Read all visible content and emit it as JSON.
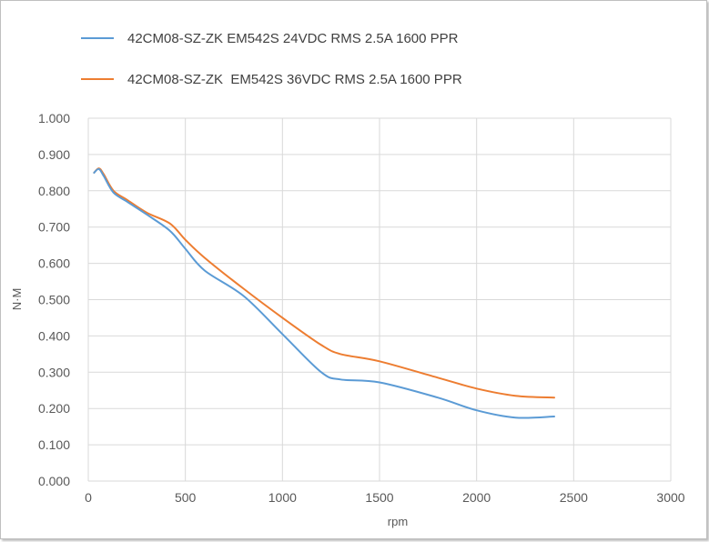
{
  "chart_data": {
    "type": "line",
    "title": "",
    "xlabel": "rpm",
    "ylabel": "N·M",
    "xlim": [
      0,
      3000
    ],
    "ylim": [
      0,
      1.0
    ],
    "x_ticks": [
      0,
      500,
      1000,
      1500,
      2000,
      2500,
      3000
    ],
    "x_tick_labels": [
      "0",
      "500",
      "1000",
      "1500",
      "2000",
      "2500",
      "3000"
    ],
    "y_ticks": [
      0,
      0.1,
      0.2,
      0.3,
      0.4,
      0.5,
      0.6,
      0.7,
      0.8,
      0.9,
      1.0
    ],
    "y_tick_labels": [
      "0.000",
      "0.100",
      "0.200",
      "0.300",
      "0.400",
      "0.500",
      "0.600",
      "0.700",
      "0.800",
      "0.900",
      "1.000"
    ],
    "grid": "vertical and horizontal",
    "legend_position": "top",
    "series": [
      {
        "name": "42CM08-SZ-ZK EM542S 24VDC RMS 2.5A 1600 PPR",
        "color": "#5b9bd5",
        "x": [
          30,
          55,
          80,
          130,
          200,
          300,
          420,
          500,
          600,
          800,
          1000,
          1200,
          1300,
          1500,
          1800,
          2000,
          2200,
          2400
        ],
        "y": [
          0.85,
          0.86,
          0.84,
          0.795,
          0.77,
          0.735,
          0.69,
          0.64,
          0.58,
          0.51,
          0.405,
          0.3,
          0.28,
          0.272,
          0.23,
          0.195,
          0.175,
          0.178
        ]
      },
      {
        "name": "42CM08-SZ-ZK  EM542S 36VDC RMS 2.5A 1600 PPR",
        "color": "#ed7d31",
        "x": [
          30,
          55,
          80,
          130,
          200,
          300,
          420,
          500,
          600,
          800,
          1000,
          1200,
          1300,
          1500,
          1800,
          2000,
          2200,
          2400
        ],
        "y": [
          0.85,
          0.862,
          0.845,
          0.8,
          0.775,
          0.74,
          0.71,
          0.665,
          0.615,
          0.53,
          0.45,
          0.375,
          0.35,
          0.33,
          0.285,
          0.255,
          0.235,
          0.23
        ]
      }
    ]
  }
}
